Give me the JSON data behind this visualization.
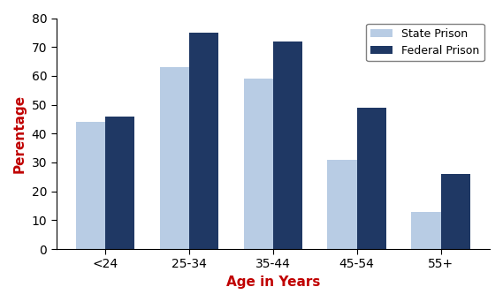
{
  "categories": [
    "<24",
    "25-34",
    "35-44",
    "45-54",
    "55+"
  ],
  "state_prison": [
    44,
    63,
    59,
    31,
    13
  ],
  "federal_prison": [
    46,
    75,
    72,
    49,
    26
  ],
  "state_color": "#b8cce4",
  "federal_color": "#1f3864",
  "title": "",
  "xlabel": "Age in Years",
  "ylabel": "Perentage",
  "ylim": [
    0,
    80
  ],
  "yticks": [
    0,
    10,
    20,
    30,
    40,
    50,
    60,
    70,
    80
  ],
  "legend_labels": [
    "State Prison",
    "Federal Prison"
  ],
  "ylabel_color": "#c00000",
  "xlabel_color": "#c00000",
  "background_color": "#ffffff",
  "bar_width": 0.35,
  "figsize": [
    5.69,
    3.42
  ],
  "dpi": 100
}
